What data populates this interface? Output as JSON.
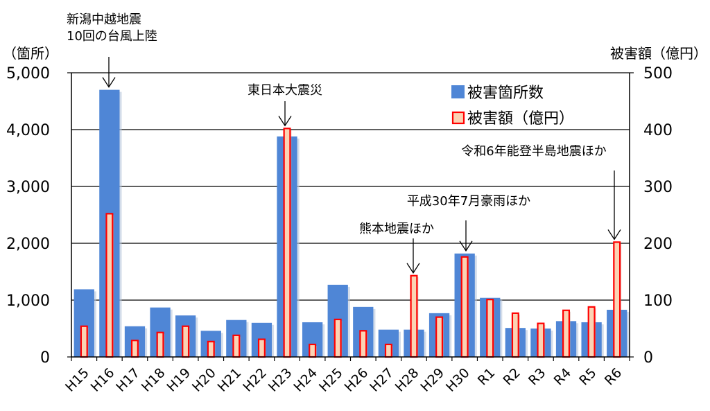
{
  "chart_data": {
    "type": "bar",
    "categories": [
      "H15",
      "H16",
      "H17",
      "H18",
      "H19",
      "H20",
      "H21",
      "H22",
      "H23",
      "H24",
      "H25",
      "H26",
      "H27",
      "H28",
      "H29",
      "H30",
      "R1",
      "R2",
      "R3",
      "R4",
      "R5",
      "R6"
    ],
    "series": [
      {
        "name": "被害箇所数",
        "axis": "left",
        "color": "#4f86d6",
        "values": [
          1190,
          4700,
          540,
          870,
          730,
          460,
          650,
          600,
          3880,
          610,
          1270,
          880,
          480,
          480,
          770,
          1820,
          1040,
          510,
          500,
          630,
          610,
          830
        ]
      },
      {
        "name": "被害額（億円）",
        "axis": "right",
        "color": "#ff0000",
        "fill": "#fbd3b4",
        "values": [
          54,
          252,
          29,
          43,
          54,
          27,
          38,
          31,
          402,
          22,
          66,
          46,
          22,
          143,
          70,
          176,
          101,
          77,
          59,
          82,
          88,
          202
        ]
      }
    ],
    "y_left": {
      "unit_label": "（箇所）",
      "ylim": [
        0,
        5000
      ],
      "ticks": [
        "0",
        "1,000",
        "2,000",
        "3,000",
        "4,000",
        "5,000"
      ]
    },
    "y_right": {
      "unit_label": "被害額（億円）",
      "ylim": [
        0,
        500
      ],
      "ticks": [
        "0",
        "100",
        "200",
        "300",
        "400",
        "500"
      ]
    },
    "grid": true,
    "legend_position": "top-right",
    "annotations": [
      {
        "category": "H16",
        "lines": [
          "新潟中越地震",
          "10回の台風上陸"
        ]
      },
      {
        "category": "H23",
        "lines": [
          "東日本大震災"
        ]
      },
      {
        "category": "H28",
        "lines": [
          "熊本地震ほか"
        ]
      },
      {
        "category": "H30",
        "lines": [
          "平成30年7月豪雨ほか"
        ]
      },
      {
        "category": "R6",
        "lines": [
          "令和6年能登半島地震ほか"
        ]
      }
    ]
  }
}
